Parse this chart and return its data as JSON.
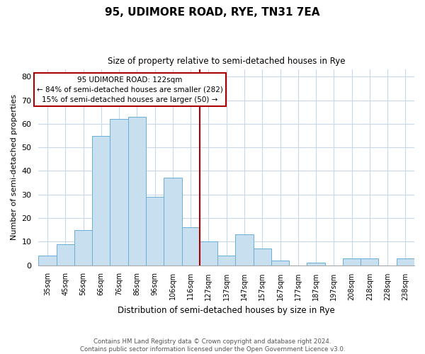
{
  "title": "95, UDIMORE ROAD, RYE, TN31 7EA",
  "subtitle": "Size of property relative to semi-detached houses in Rye",
  "xlabel": "Distribution of semi-detached houses by size in Rye",
  "ylabel": "Number of semi-detached properties",
  "bar_labels": [
    "35sqm",
    "45sqm",
    "56sqm",
    "66sqm",
    "76sqm",
    "86sqm",
    "96sqm",
    "106sqm",
    "116sqm",
    "127sqm",
    "137sqm",
    "147sqm",
    "157sqm",
    "167sqm",
    "177sqm",
    "187sqm",
    "197sqm",
    "208sqm",
    "218sqm",
    "228sqm",
    "238sqm"
  ],
  "bar_values": [
    4,
    9,
    15,
    55,
    62,
    63,
    29,
    37,
    16,
    10,
    4,
    13,
    7,
    2,
    0,
    1,
    0,
    3,
    3,
    0,
    3
  ],
  "bar_color": "#c8dff0",
  "bar_edge_color": "#6aafd6",
  "highlight_bar_index": 8,
  "vline_color": "#aa0000",
  "ylim": [
    0,
    83
  ],
  "yticks": [
    0,
    10,
    20,
    30,
    40,
    50,
    60,
    70,
    80
  ],
  "annotation_title": "95 UDIMORE ROAD: 122sqm",
  "annotation_line1": "← 84% of semi-detached houses are smaller (282)",
  "annotation_line2": "15% of semi-detached houses are larger (50) →",
  "annotation_box_color": "#ffffff",
  "annotation_box_edge": "#aa0000",
  "footer_line1": "Contains HM Land Registry data © Crown copyright and database right 2024.",
  "footer_line2": "Contains public sector information licensed under the Open Government Licence v3.0.",
  "background_color": "#ffffff",
  "grid_color": "#c8d8e8"
}
